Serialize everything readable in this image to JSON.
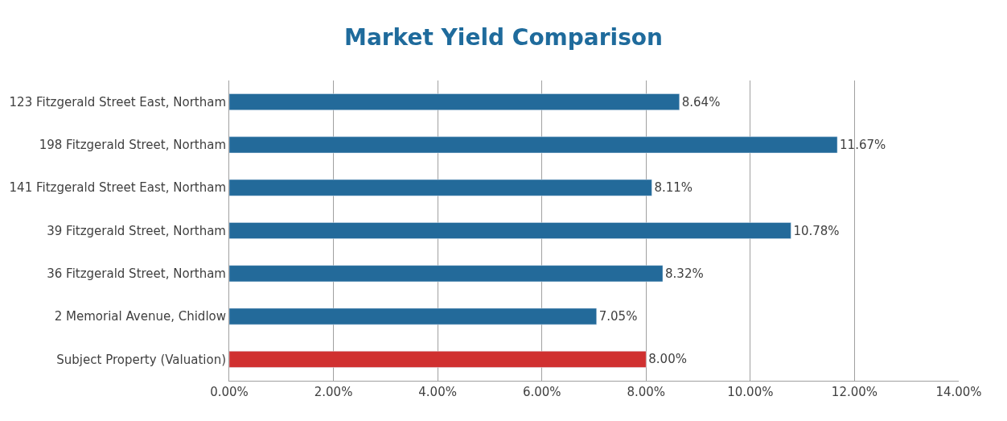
{
  "chart_data": {
    "type": "bar",
    "orientation": "horizontal",
    "title": "Market Yield Comparison",
    "categories": [
      "123 Fitzgerald Street East, Northam",
      "198 Fitzgerald Street, Northam",
      "141 Fitzgerald Street East, Northam",
      "39 Fitzgerald Street, Northam",
      "36 Fitzgerald Street, Northam",
      "2 Memorial Avenue, Chidlow",
      "Subject Property (Valuation)"
    ],
    "values": [
      8.64,
      11.67,
      8.11,
      10.78,
      8.32,
      7.05,
      8.0
    ],
    "value_labels": [
      "8.64%",
      "11.67%",
      "8.11%",
      "10.78%",
      "8.32%",
      "7.05%",
      "8.00%"
    ],
    "colors": [
      "#236a9a",
      "#236a9a",
      "#236a9a",
      "#236a9a",
      "#236a9a",
      "#236a9a",
      "#d03030"
    ],
    "xlim": [
      0,
      14
    ],
    "xticks": [
      {
        "value": 0,
        "label": "0.00%"
      },
      {
        "value": 2,
        "label": "2.00%"
      },
      {
        "value": 4,
        "label": "4.00%"
      },
      {
        "value": 6,
        "label": "6.00%"
      },
      {
        "value": 8,
        "label": "8.00%"
      },
      {
        "value": 10,
        "label": "10.00%"
      },
      {
        "value": 12,
        "label": "12.00%"
      },
      {
        "value": 14,
        "label": "14.00%"
      }
    ],
    "grid": "x"
  }
}
